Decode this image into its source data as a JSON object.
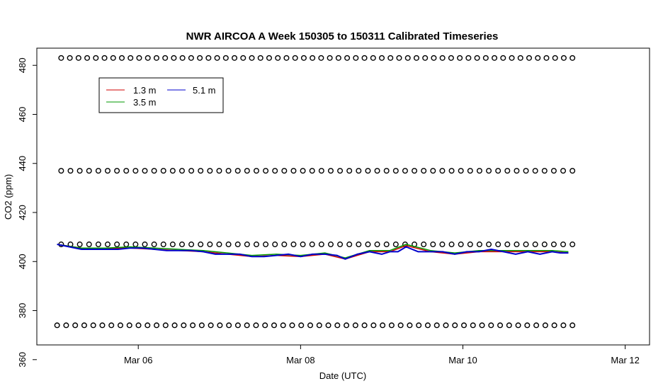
{
  "chart_data": {
    "type": "line",
    "title": "NWR AIRCOA A  Week 150305 to 150311  Calibrated Timeseries",
    "xlabel": "Date (UTC)",
    "ylabel": "CO2 (ppm)",
    "x_ticks": [
      "Mar 06",
      "Mar 08",
      "Mar 10",
      "Mar 12"
    ],
    "x_tick_values": [
      1,
      3,
      5,
      7
    ],
    "xlim": [
      -0.25,
      7.3
    ],
    "y_ticks": [
      "360",
      "380",
      "400",
      "420",
      "440",
      "460",
      "480"
    ],
    "y_tick_values": [
      360,
      380,
      400,
      420,
      440,
      460,
      480
    ],
    "ylim": [
      366,
      487
    ],
    "legend": {
      "placement": "top-left",
      "entries": [
        {
          "label": "1.3 m",
          "color": "#d00000"
        },
        {
          "label": "3.5 m",
          "color": "#009900"
        },
        {
          "label": "5.1 m",
          "color": "#0000cc"
        }
      ]
    },
    "series": [
      {
        "name": "5.1 m",
        "color": "#0000cc",
        "x": [
          0.0,
          0.15,
          0.3,
          0.45,
          0.6,
          0.75,
          0.9,
          1.05,
          1.2,
          1.35,
          1.5,
          1.65,
          1.8,
          1.95,
          2.1,
          2.25,
          2.4,
          2.55,
          2.7,
          2.85,
          3.0,
          3.15,
          3.3,
          3.45,
          3.55,
          3.7,
          3.85,
          4.0,
          4.1,
          4.2,
          4.3,
          4.45,
          4.6,
          4.75,
          4.9,
          5.05,
          5.2,
          5.35,
          5.5,
          5.65,
          5.8,
          5.95,
          6.1,
          6.2,
          6.3
        ],
        "y": [
          407,
          406,
          405,
          405,
          405,
          405,
          405.5,
          405.5,
          405,
          404.5,
          404.5,
          404.5,
          404,
          403,
          403,
          403,
          402,
          402,
          402.5,
          403,
          402,
          403,
          403,
          402.5,
          401,
          403,
          404,
          403,
          404,
          404,
          406,
          404,
          404,
          404,
          403,
          404,
          404,
          405,
          404,
          403,
          404,
          403,
          404,
          403.5,
          403.5
        ]
      },
      {
        "name": "3.5 m",
        "color": "#009900",
        "x": [
          0.0,
          0.3,
          0.6,
          0.9,
          1.2,
          1.5,
          1.8,
          2.1,
          2.4,
          2.7,
          3.0,
          3.3,
          3.55,
          3.85,
          4.1,
          4.3,
          4.6,
          4.9,
          5.2,
          5.5,
          5.8,
          6.1,
          6.3
        ],
        "y": [
          407,
          405.5,
          405.5,
          406,
          405.5,
          405,
          404.5,
          403.5,
          402.5,
          403,
          402.5,
          403.5,
          401.5,
          404.5,
          404.5,
          407,
          404.5,
          403.5,
          404.5,
          404.5,
          404.5,
          404.5,
          404
        ]
      },
      {
        "name": "1.3 m",
        "color": "#d00000",
        "x": [
          0.0,
          0.3,
          0.6,
          0.9,
          1.2,
          1.5,
          1.8,
          2.1,
          2.4,
          2.7,
          3.0,
          3.3,
          3.55,
          3.85,
          4.1,
          4.3,
          4.6,
          4.9,
          5.2,
          5.5,
          5.8,
          6.1,
          6.3
        ],
        "y": [
          407,
          405.5,
          405.5,
          405.5,
          405,
          404.5,
          404,
          403,
          402,
          402.5,
          402,
          403,
          401,
          404,
          404,
          406.5,
          404,
          403,
          404,
          404,
          404,
          404,
          403.5
        ]
      }
    ],
    "circle_rows": [
      {
        "y": 483,
        "x_start": 0.05,
        "x_end": 6.35,
        "count": 60
      },
      {
        "y": 437,
        "x_start": 0.05,
        "x_end": 6.35,
        "count": 56
      },
      {
        "y": 407,
        "x_start": 0.05,
        "x_end": 6.35,
        "count": 56
      },
      {
        "y": 374,
        "x_start": 0.0,
        "x_end": 6.35,
        "count": 58
      }
    ]
  }
}
